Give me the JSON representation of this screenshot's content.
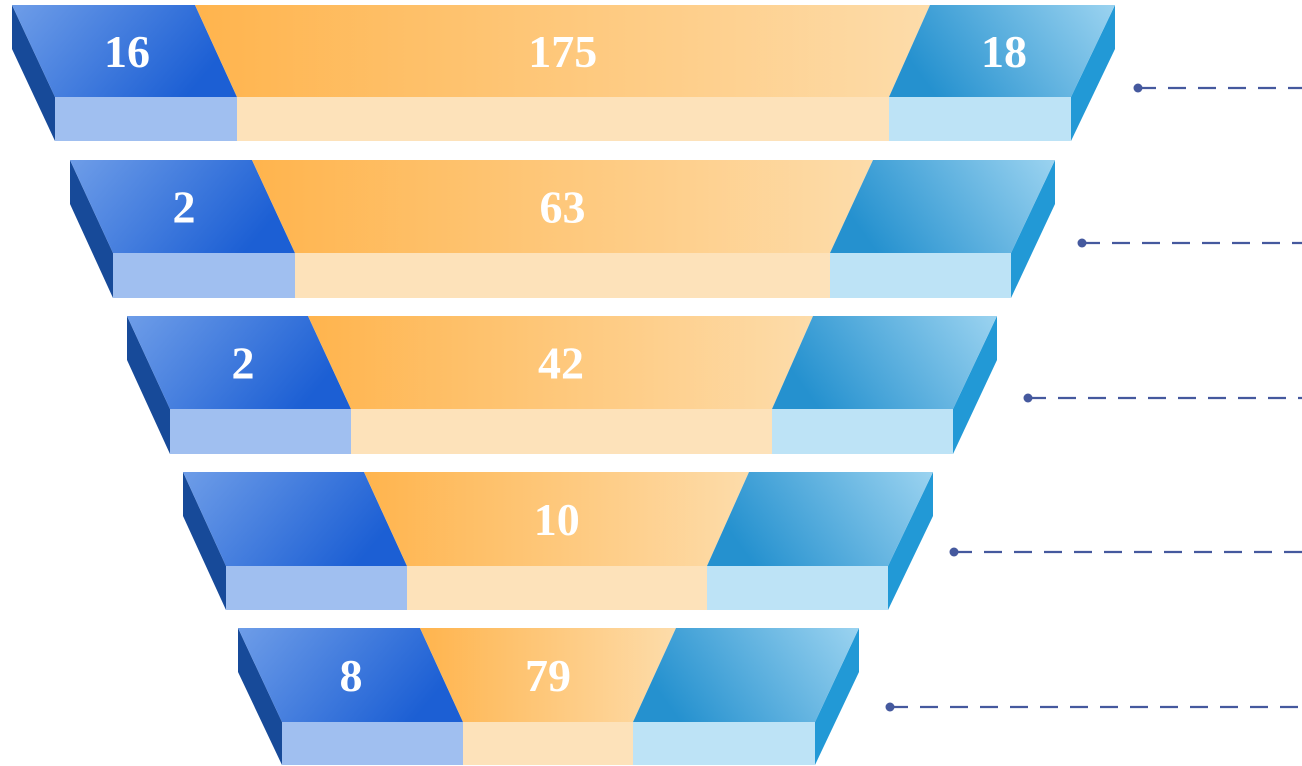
{
  "colors": {
    "blue_dark": "#1C5FD4",
    "blue_light": "#6E9DE8",
    "blue_base": "#A0BFF0",
    "blue_side": "#174A99",
    "orange_dark": "#FFB44D",
    "orange_light": "#FDDCAA",
    "orange_base": "#FDE2BA",
    "cyan_dark": "#2591CF",
    "cyan_light": "#9BD3F0",
    "cyan_base": "#BDE3F6",
    "cyan_side": "#2299D6",
    "connector": "#45599E",
    "label_text": "#FFFFFF"
  },
  "funnel": {
    "levels": [
      {
        "left_value": "16",
        "center_value": "175",
        "right_value": "18"
      },
      {
        "left_value": "2",
        "center_value": "63",
        "right_value": ""
      },
      {
        "left_value": "2",
        "center_value": "42",
        "right_value": ""
      },
      {
        "left_value": "",
        "center_value": "10",
        "right_value": ""
      },
      {
        "left_value": "8",
        "center_value": "79",
        "right_value": ""
      }
    ]
  }
}
